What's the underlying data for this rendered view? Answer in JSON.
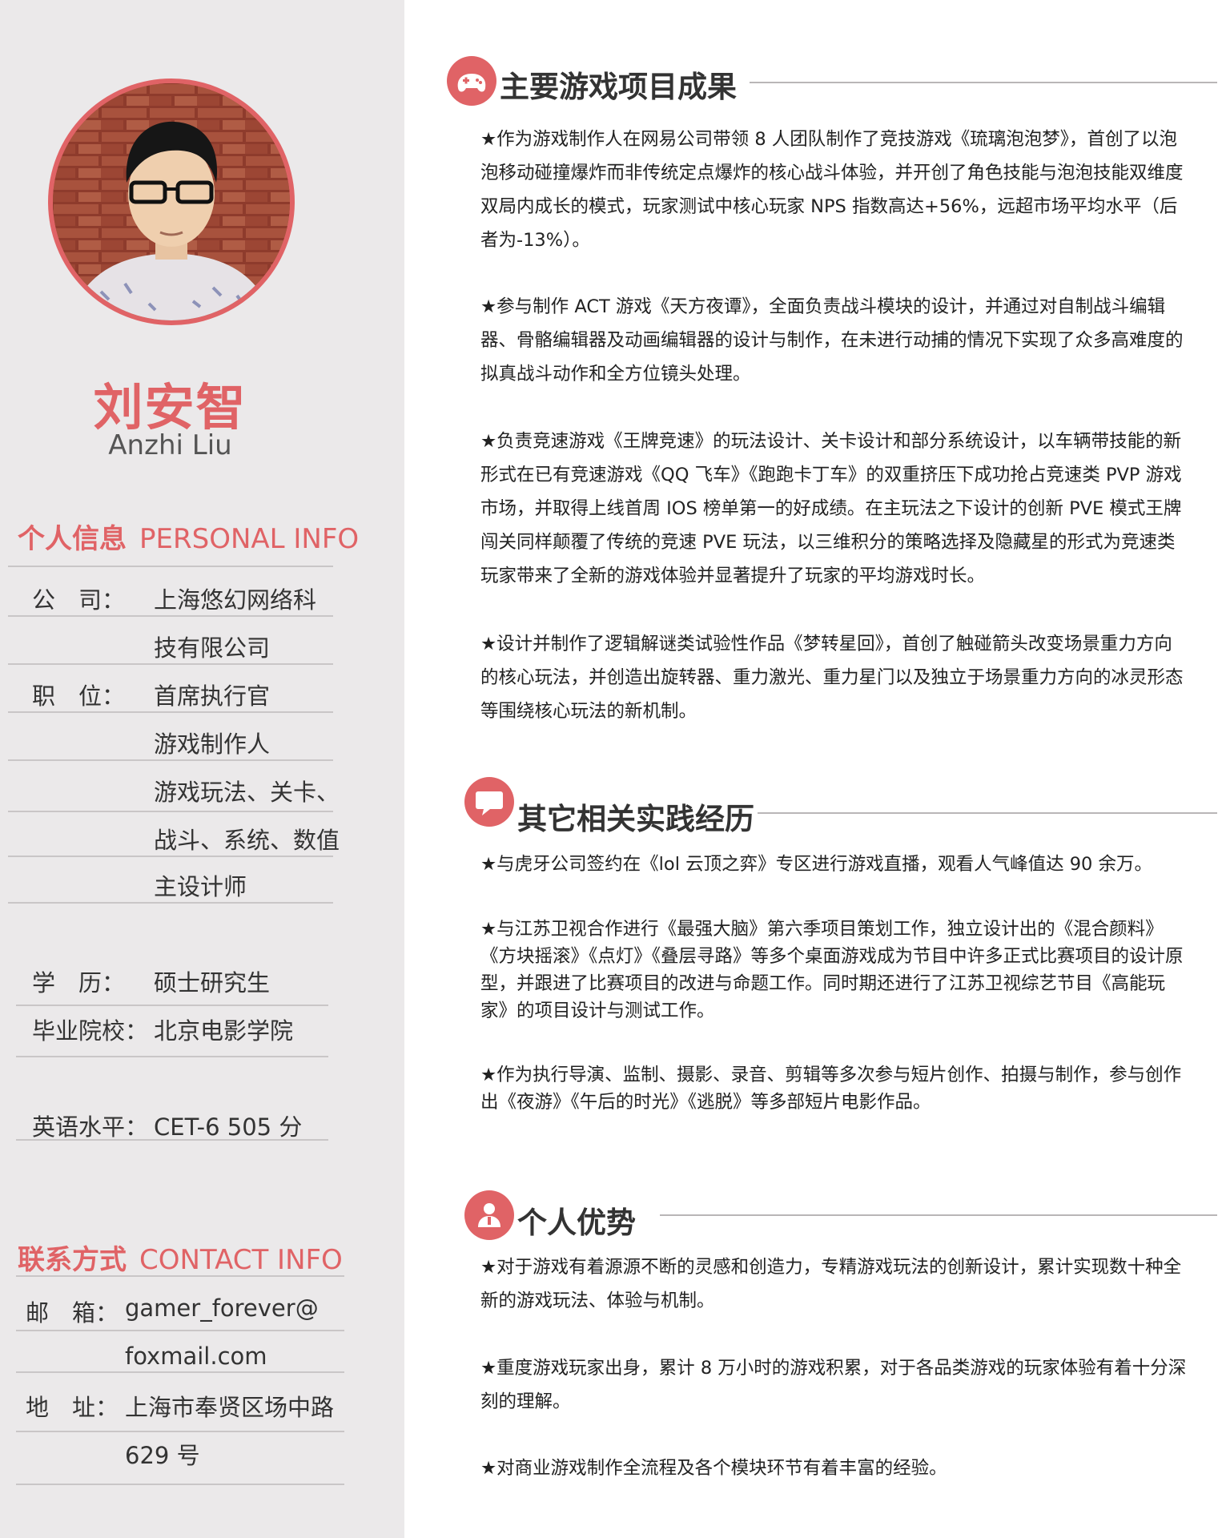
{
  "profile": {
    "name_cn": "刘安智",
    "name_en": "Anzhi Liu"
  },
  "personal": {
    "heading_cn": "个人信息",
    "heading_en": "PERSONAL INFO",
    "rows": [
      {
        "label": "公　司：",
        "value": "上海悠幻网络科"
      },
      {
        "label": "",
        "value": "技有限公司"
      },
      {
        "label": "职　位：",
        "value": "首席执行官"
      },
      {
        "label": "",
        "value": "游戏制作人"
      },
      {
        "label": "",
        "value": "游戏玩法、关卡、"
      },
      {
        "label": "",
        "value": "战斗、系统、数值"
      },
      {
        "label": "",
        "value": "主设计师"
      },
      {
        "label": "学　历：",
        "value": "硕士研究生"
      },
      {
        "label": "毕业院校：",
        "value": "北京电影学院"
      },
      {
        "label": "英语水平：",
        "value": "CET-6 505 分"
      }
    ]
  },
  "contact": {
    "heading_cn": "联系方式",
    "heading_en": "CONTACT INFO",
    "rows": [
      {
        "label": "邮　箱：",
        "value": "gamer_forever@"
      },
      {
        "label": "",
        "value": "foxmail.com"
      },
      {
        "label": "地　址：",
        "value": "上海市奉贤区场中路"
      },
      {
        "label": "",
        "value": "629 号"
      }
    ]
  },
  "sections": [
    {
      "title": "主要游戏项目成果",
      "icon": "gamepad-icon",
      "paragraphs": [
        "★作为游戏制作人在网易公司带领 8 人团队制作了竞技游戏《琉璃泡泡梦》，首创了以泡泡移动碰撞爆炸而非传统定点爆炸的核心战斗体验，并开创了角色技能与泡泡技能双维度双局内成长的模式，玩家测试中核心玩家 NPS 指数高达+56%，远超市场平均水平（后者为-13%）。",
        "★参与制作 ACT 游戏《天方夜谭》，全面负责战斗模块的设计，并通过对自制战斗编辑器、骨骼编辑器及动画编辑器的设计与制作，在未进行动捕的情况下实现了众多高难度的拟真战斗动作和全方位镜头处理。",
        "★负责竞速游戏《王牌竞速》的玩法设计、关卡设计和部分系统设计，以车辆带技能的新形式在已有竞速游戏《QQ 飞车》《跑跑卡丁车》的双重挤压下成功抢占竞速类 PVP 游戏市场，并取得上线首周 IOS 榜单第一的好成绩。在主玩法之下设计的创新 PVE 模式王牌闯关同样颠覆了传统的竞速 PVE 玩法，以三维积分的策略选择及隐藏星的形式为竞速类玩家带来了全新的游戏体验并显著提升了玩家的平均游戏时长。",
        "★设计并制作了逻辑解谜类试验性作品《梦转星回》，首创了触碰箭头改变场景重力方向的核心玩法，并创造出旋转器、重力激光、重力星门以及独立于场景重力方向的冰灵形态等围绕核心玩法的新机制。"
      ]
    },
    {
      "title": "其它相关实践经历",
      "icon": "chat-icon",
      "paragraphs": [
        "★与虎牙公司签约在《lol 云顶之弈》专区进行游戏直播，观看人气峰值达 90 余万。",
        "★与江苏卫视合作进行《最强大脑》第六季项目策划工作，独立设计出的《混合颜料》《方块摇滚》《点灯》《叠层寻路》等多个桌面游戏成为节目中许多正式比赛项目的设计原型，并跟进了比赛项目的改进与命题工作。同时期还进行了江苏卫视综艺节目《高能玩家》的项目设计与测试工作。",
        "★作为执行导演、监制、摄影、录音、剪辑等多次参与短片创作、拍摄与制作，参与创作出《夜游》《午后的时光》《逃脱》等多部短片电影作品。"
      ]
    },
    {
      "title": "个人优势",
      "icon": "person-icon",
      "paragraphs": [
        "★对于游戏有着源源不断的灵感和创造力，专精游戏玩法的创新设计，累计实现数十种全新的游戏玩法、体验与机制。",
        "★重度游戏玩家出身，累计 8 万小时的游戏积累，对于各品类游戏的玩家体验有着十分深刻的理解。",
        "★对商业游戏制作全流程及各个模块环节有着丰富的经验。"
      ]
    }
  ],
  "colors": {
    "accent": "#e06366",
    "sidebar_bg": "#ebe9ea",
    "rule": "#c9c6c7"
  }
}
